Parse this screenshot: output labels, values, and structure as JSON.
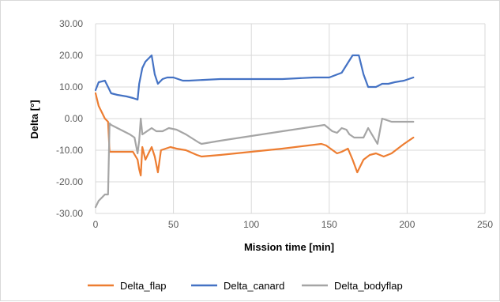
{
  "chart_data": {
    "type": "line",
    "title": "",
    "xlabel": "Mission time [min]",
    "ylabel": "Delta [°]",
    "xlim": [
      0,
      250
    ],
    "ylim": [
      -30,
      30
    ],
    "x_ticks": [
      "0",
      "50",
      "100",
      "150",
      "200",
      "250"
    ],
    "y_ticks": [
      "30.00",
      "20.00",
      "10.00",
      "0.00",
      "-10.00",
      "-20.00",
      "-30.00"
    ],
    "grid": "major",
    "legend_position": "bottom",
    "series": [
      {
        "name": "Delta_flap",
        "color": "#ED7D31",
        "points": [
          [
            0,
            8
          ],
          [
            2,
            4
          ],
          [
            4,
            2
          ],
          [
            6,
            0
          ],
          [
            8,
            -1
          ],
          [
            9,
            -10.5
          ],
          [
            12,
            -10.5
          ],
          [
            20,
            -10.5
          ],
          [
            24,
            -10.5
          ],
          [
            27,
            -13
          ],
          [
            28,
            -16
          ],
          [
            29,
            -18
          ],
          [
            30,
            -9
          ],
          [
            32,
            -13
          ],
          [
            34,
            -11
          ],
          [
            36,
            -9
          ],
          [
            38,
            -12
          ],
          [
            40,
            -17
          ],
          [
            42,
            -10
          ],
          [
            45,
            -9.5
          ],
          [
            48,
            -9
          ],
          [
            52,
            -9.5
          ],
          [
            58,
            -10
          ],
          [
            65,
            -11.5
          ],
          [
            68,
            -12
          ],
          [
            80,
            -11.5
          ],
          [
            100,
            -10.5
          ],
          [
            120,
            -9.5
          ],
          [
            145,
            -8
          ],
          [
            148,
            -8.5
          ],
          [
            155,
            -11
          ],
          [
            158,
            -10.5
          ],
          [
            162,
            -9.5
          ],
          [
            165,
            -13
          ],
          [
            168,
            -17
          ],
          [
            172,
            -13
          ],
          [
            176,
            -11.5
          ],
          [
            180,
            -11
          ],
          [
            185,
            -12
          ],
          [
            190,
            -11
          ],
          [
            198,
            -8
          ],
          [
            204,
            -6
          ]
        ]
      },
      {
        "name": "Delta_canard",
        "color": "#4472C4",
        "points": [
          [
            0,
            9
          ],
          [
            2,
            11.5
          ],
          [
            6,
            12
          ],
          [
            8,
            10
          ],
          [
            10,
            8
          ],
          [
            14,
            7.5
          ],
          [
            20,
            7
          ],
          [
            24,
            6.5
          ],
          [
            27,
            6
          ],
          [
            28,
            11
          ],
          [
            30,
            16
          ],
          [
            32,
            18
          ],
          [
            36,
            20
          ],
          [
            38,
            14
          ],
          [
            40,
            11
          ],
          [
            43,
            12.5
          ],
          [
            46,
            13
          ],
          [
            50,
            13
          ],
          [
            56,
            12
          ],
          [
            60,
            12
          ],
          [
            80,
            12.5
          ],
          [
            100,
            12.5
          ],
          [
            120,
            12.5
          ],
          [
            140,
            13
          ],
          [
            150,
            13
          ],
          [
            158,
            14.5
          ],
          [
            165,
            20
          ],
          [
            169,
            20
          ],
          [
            172,
            14
          ],
          [
            175,
            10
          ],
          [
            180,
            10
          ],
          [
            184,
            11
          ],
          [
            188,
            11
          ],
          [
            192,
            11.5
          ],
          [
            198,
            12
          ],
          [
            204,
            13
          ]
        ]
      },
      {
        "name": "Delta_bodyflap",
        "color": "#A5A5A5",
        "points": [
          [
            0,
            -28
          ],
          [
            2,
            -26
          ],
          [
            4,
            -25
          ],
          [
            6,
            -24
          ],
          [
            8,
            -24
          ],
          [
            9,
            -1.5
          ],
          [
            10,
            -2
          ],
          [
            14,
            -3
          ],
          [
            18,
            -4
          ],
          [
            22,
            -5
          ],
          [
            25,
            -6
          ],
          [
            27,
            -11
          ],
          [
            28,
            -7
          ],
          [
            29,
            0
          ],
          [
            30,
            -5
          ],
          [
            33,
            -4
          ],
          [
            36,
            -3
          ],
          [
            39,
            -4
          ],
          [
            43,
            -4
          ],
          [
            47,
            -3
          ],
          [
            52,
            -3.5
          ],
          [
            58,
            -5
          ],
          [
            66,
            -7.5
          ],
          [
            68,
            -8
          ],
          [
            80,
            -7
          ],
          [
            100,
            -5.5
          ],
          [
            120,
            -4
          ],
          [
            147,
            -2
          ],
          [
            152,
            -4
          ],
          [
            155,
            -4.5
          ],
          [
            158,
            -3
          ],
          [
            161,
            -3.5
          ],
          [
            163,
            -5
          ],
          [
            166,
            -6
          ],
          [
            170,
            -6
          ],
          [
            172,
            -6
          ],
          [
            175,
            -3
          ],
          [
            178,
            -5.5
          ],
          [
            181,
            -8
          ],
          [
            184,
            0
          ],
          [
            190,
            -1
          ],
          [
            195,
            -1
          ],
          [
            204,
            -1
          ]
        ]
      }
    ]
  }
}
